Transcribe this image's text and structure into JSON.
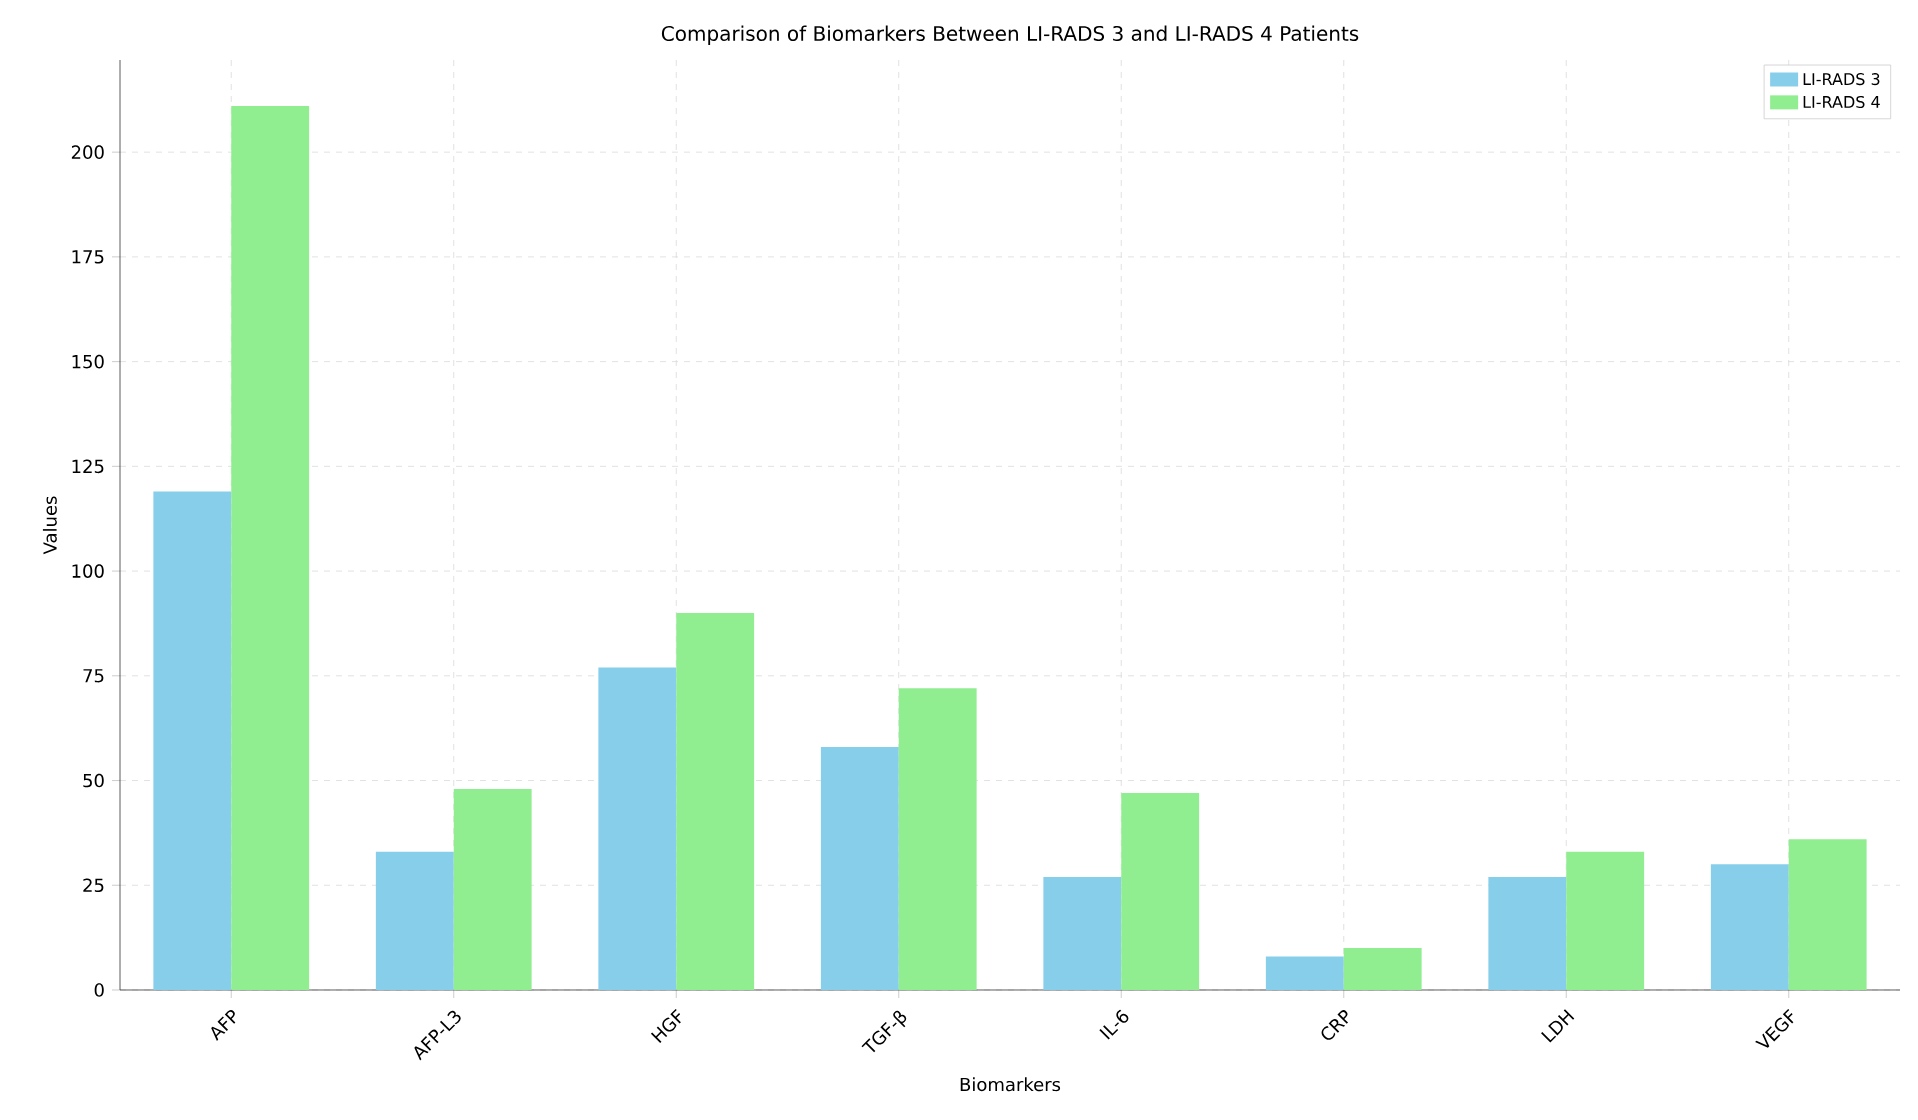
{
  "chart_data": {
    "type": "bar",
    "title": "Comparison of Biomarkers Between LI-RADS 3 and LI-RADS 4 Patients",
    "xlabel": "Biomarkers",
    "ylabel": "Values",
    "categories": [
      "AFP",
      "AFP-L3",
      "HGF",
      "TGF-β",
      "IL-6",
      "CRP",
      "LDH",
      "VEGF"
    ],
    "series": [
      {
        "name": "LI-RADS 3",
        "color": "#87ceeb",
        "values": [
          119,
          33,
          77,
          58,
          27,
          8,
          27,
          30
        ]
      },
      {
        "name": "LI-RADS 4",
        "color": "#90ee90",
        "values": [
          211,
          48,
          90,
          72,
          47,
          10,
          33,
          36
        ]
      }
    ],
    "ylim": [
      0,
      222
    ],
    "yticks": [
      0,
      25,
      50,
      75,
      100,
      125,
      150,
      175,
      200
    ],
    "grid": true,
    "legend": "top right"
  }
}
